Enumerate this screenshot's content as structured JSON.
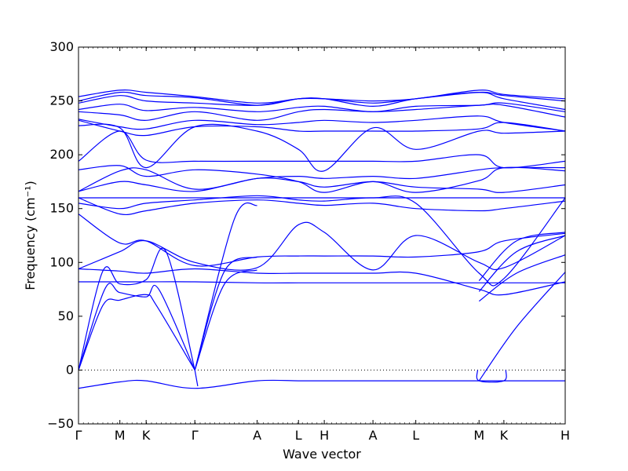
{
  "chart_data": {
    "type": "line",
    "title": "",
    "xlabel": "Wave vector",
    "ylabel": "Frequency (cm⁻¹)",
    "ylim": [
      -50,
      300
    ],
    "y_ticks": [
      -50,
      0,
      50,
      100,
      150,
      200,
      250,
      300
    ],
    "y_tick_labels": [
      "−50",
      "0",
      "50",
      "100",
      "150",
      "200",
      "250",
      "300"
    ],
    "grid": false,
    "legend": "none",
    "line_color": "#0000ff",
    "zero_line": {
      "y": 0,
      "style": "dotted",
      "color": "#000000"
    },
    "x_ticks": [
      {
        "label": "Γ",
        "pos": 0.0
      },
      {
        "label": "M",
        "pos": 0.085
      },
      {
        "label": "K",
        "pos": 0.139
      },
      {
        "label": "Γ",
        "pos": 0.239
      },
      {
        "label": "A",
        "pos": 0.367
      },
      {
        "label": "L",
        "pos": 0.452
      },
      {
        "label": "H",
        "pos": 0.505
      },
      {
        "label": "A",
        "pos": 0.605
      },
      {
        "label": "L",
        "pos": 0.693
      },
      {
        "label": "M",
        "pos": 0.823
      },
      {
        "label": "K",
        "pos": 0.874
      },
      {
        "label": "H",
        "pos": 1.0
      }
    ],
    "series": [
      {
        "x": [
          0,
          0.085,
          0.139,
          0.239,
          0.367,
          0.452,
          0.505,
          0.605,
          0.693,
          0.823,
          0.874,
          1.0
        ],
        "y": [
          -17,
          -11,
          -10,
          -17,
          -10,
          -10,
          -10,
          -10,
          -10,
          -10,
          -10,
          -10
        ]
      },
      {
        "x": [
          0.239,
          0.245
        ],
        "y": [
          0,
          -15
        ]
      },
      {
        "x": [
          0.82,
          0.823,
          0.874,
          0.878
        ],
        "y": [
          0,
          -10,
          -10,
          0
        ]
      },
      {
        "x": [
          0,
          0.05,
          0.085,
          0.139,
          0.16,
          0.239
        ],
        "y": [
          0,
          60,
          65,
          70,
          60,
          0
        ]
      },
      {
        "x": [
          0,
          0.055,
          0.085,
          0.139,
          0.165,
          0.239
        ],
        "y": [
          0,
          76,
          72,
          68,
          75,
          0
        ]
      },
      {
        "x": [
          0,
          0.05,
          0.085,
          0.139,
          0.18,
          0.239
        ],
        "y": [
          0,
          92,
          80,
          84,
          110,
          0
        ]
      },
      {
        "x": [
          0.239,
          0.3,
          0.367
        ],
        "y": [
          0,
          80,
          93
        ]
      },
      {
        "x": [
          0.239,
          0.3,
          0.367
        ],
        "y": [
          0,
          92,
          105
        ]
      },
      {
        "x": [
          0.239,
          0.32,
          0.367
        ],
        "y": [
          0,
          140,
          153
        ]
      },
      {
        "x": [
          0.823,
          0.9,
          1.0
        ],
        "y": [
          -10,
          40,
          91
        ]
      },
      {
        "x": [
          0.823,
          0.9,
          1.0
        ],
        "y": [
          64,
          90,
          107
        ]
      },
      {
        "x": [
          0.823,
          0.9,
          1.0
        ],
        "y": [
          73,
          110,
          125
        ]
      },
      {
        "x": [
          0.823,
          0.9,
          1.0
        ],
        "y": [
          83,
          120,
          128
        ]
      },
      {
        "x": [
          0,
          0.085,
          0.139,
          0.239,
          0.367,
          0.452,
          0.505,
          0.605,
          0.693,
          0.823,
          0.874,
          1.0
        ],
        "y": [
          82,
          82,
          82,
          82,
          81,
          81,
          81,
          81,
          81,
          81,
          81,
          81
        ]
      },
      {
        "x": [
          0,
          0.085,
          0.139,
          0.239,
          0.367,
          0.452,
          0.505,
          0.605,
          0.693,
          0.823,
          0.874,
          1.0
        ],
        "y": [
          94,
          92,
          90,
          94,
          90,
          90,
          90,
          90,
          90,
          75,
          70,
          82
        ]
      },
      {
        "x": [
          0,
          0.085,
          0.139,
          0.239,
          0.367,
          0.452,
          0.505,
          0.605,
          0.693,
          0.823,
          0.874,
          1.0
        ],
        "y": [
          94,
          110,
          120,
          100,
          95,
          135,
          128,
          93,
          125,
          100,
          95,
          125
        ]
      },
      {
        "x": [
          0,
          0.085,
          0.139,
          0.239,
          0.367,
          0.452,
          0.505,
          0.605,
          0.693,
          0.823,
          0.874,
          1.0
        ],
        "y": [
          145,
          118,
          120,
          97,
          105,
          106,
          106,
          106,
          105,
          110,
          120,
          127
        ]
      },
      {
        "x": [
          0,
          0.085,
          0.139,
          0.239,
          0.367,
          0.452,
          0.505,
          0.605,
          0.693,
          0.823,
          0.874,
          1.0
        ],
        "y": [
          160,
          145,
          148,
          155,
          158,
          155,
          153,
          155,
          150,
          148,
          150,
          157
        ]
      },
      {
        "x": [
          0,
          0.085,
          0.139,
          0.239,
          0.367,
          0.452,
          0.505,
          0.605,
          0.693,
          0.823,
          0.874,
          1.0
        ],
        "y": [
          160,
          160,
          160,
          160,
          160,
          160,
          160,
          160,
          160,
          160,
          160,
          160
        ]
      },
      {
        "x": [
          0,
          0.085,
          0.139,
          0.239,
          0.367,
          0.452,
          0.505,
          0.605,
          0.693,
          0.823,
          0.874,
          1.0
        ],
        "y": [
          155,
          150,
          155,
          158,
          162,
          158,
          157,
          160,
          155,
          90,
          85,
          160
        ]
      },
      {
        "x": [
          0,
          0.085,
          0.139,
          0.239,
          0.367,
          0.452,
          0.505,
          0.605,
          0.693,
          0.823,
          0.874,
          1.0
        ],
        "y": [
          166,
          175,
          172,
          166,
          178,
          175,
          170,
          175,
          170,
          168,
          165,
          172
        ]
      },
      {
        "x": [
          0,
          0.085,
          0.139,
          0.239,
          0.367,
          0.452,
          0.505,
          0.605,
          0.693,
          0.823,
          0.874,
          1.0
        ],
        "y": [
          166,
          185,
          186,
          168,
          178,
          180,
          178,
          180,
          178,
          186,
          188,
          188
        ]
      },
      {
        "x": [
          0,
          0.085,
          0.139,
          0.239,
          0.367,
          0.452,
          0.505,
          0.605,
          0.693,
          0.823,
          0.874,
          1.0
        ],
        "y": [
          186,
          190,
          180,
          186,
          182,
          175,
          165,
          175,
          165,
          176,
          188,
          185
        ]
      },
      {
        "x": [
          0,
          0.085,
          0.139,
          0.239,
          0.367,
          0.452,
          0.505,
          0.605,
          0.693,
          0.823,
          0.874,
          1.0
        ],
        "y": [
          194,
          222,
          195,
          194,
          194,
          194,
          194,
          194,
          194,
          200,
          188,
          194
        ]
      },
      {
        "x": [
          0,
          0.085,
          0.139,
          0.239,
          0.367,
          0.452,
          0.505,
          0.605,
          0.693,
          0.823,
          0.874,
          1.0
        ],
        "y": [
          227,
          225,
          188,
          226,
          222,
          205,
          185,
          225,
          205,
          222,
          220,
          222
        ]
      },
      {
        "x": [
          0,
          0.085,
          0.139,
          0.239,
          0.367,
          0.452,
          0.505,
          0.605,
          0.693,
          0.823,
          0.874,
          1.0
        ],
        "y": [
          232,
          222,
          218,
          226,
          226,
          222,
          222,
          222,
          222,
          224,
          230,
          222
        ]
      },
      {
        "x": [
          0,
          0.085,
          0.139,
          0.239,
          0.367,
          0.452,
          0.505,
          0.605,
          0.693,
          0.823,
          0.874,
          1.0
        ],
        "y": [
          233,
          226,
          224,
          232,
          228,
          230,
          232,
          230,
          232,
          236,
          230,
          222
        ]
      },
      {
        "x": [
          0,
          0.085,
          0.139,
          0.239,
          0.367,
          0.452,
          0.505,
          0.605,
          0.693,
          0.823,
          0.874,
          1.0
        ],
        "y": [
          240,
          237,
          232,
          240,
          232,
          240,
          242,
          240,
          242,
          246,
          246,
          235
        ]
      },
      {
        "x": [
          0,
          0.085,
          0.139,
          0.239,
          0.367,
          0.452,
          0.505,
          0.605,
          0.693,
          0.823,
          0.874,
          1.0
        ],
        "y": [
          242,
          247,
          241,
          244,
          240,
          244,
          245,
          240,
          245,
          246,
          248,
          240
        ]
      },
      {
        "x": [
          0,
          0.085,
          0.139,
          0.239,
          0.367,
          0.452,
          0.505,
          0.605,
          0.693,
          0.823,
          0.874,
          1.0
        ],
        "y": [
          248,
          255,
          250,
          248,
          246,
          252,
          252,
          245,
          252,
          258,
          252,
          242
        ]
      },
      {
        "x": [
          0,
          0.085,
          0.139,
          0.239,
          0.367,
          0.452,
          0.505,
          0.605,
          0.693,
          0.823,
          0.874,
          1.0
        ],
        "y": [
          250,
          258,
          255,
          253,
          246,
          252,
          252,
          248,
          252,
          258,
          255,
          250
        ]
      },
      {
        "x": [
          0,
          0.085,
          0.139,
          0.239,
          0.367,
          0.452,
          0.505,
          0.605,
          0.693,
          0.823,
          0.874,
          1.0
        ],
        "y": [
          254,
          260,
          258,
          254,
          248,
          252,
          252,
          250,
          252,
          260,
          256,
          252
        ]
      }
    ]
  }
}
